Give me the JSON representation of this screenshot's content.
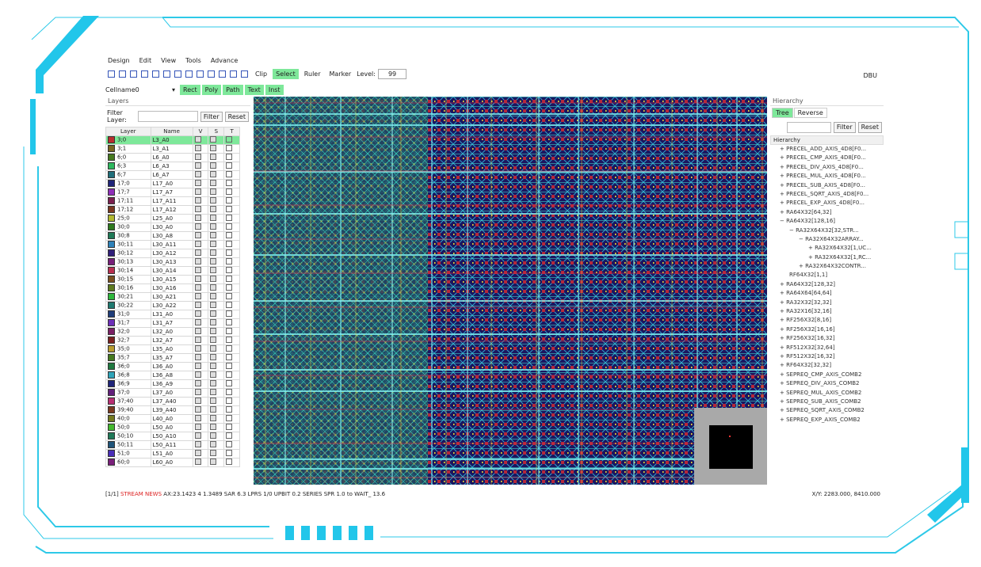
{
  "menu": [
    "Design",
    "Edit",
    "View",
    "Tools",
    "Advance"
  ],
  "toolbar": {
    "tools": [
      "Clip",
      "Select",
      "Ruler",
      "Marker"
    ],
    "level_label": "Level:",
    "level_value": "99",
    "right": "DBU"
  },
  "cell_bar": {
    "cell": "Cellname0",
    "draw_tools": [
      "Rect",
      "Poly",
      "Path",
      "Text",
      "Inst"
    ]
  },
  "layers_panel": {
    "title": "Layers",
    "filter_label": "Filter Layer:",
    "filter_button": "Filter",
    "reset_button": "Reset",
    "columns": [
      "Layer",
      "Name",
      "V",
      "S",
      "T"
    ],
    "rows": [
      [
        "3;0",
        "L3_A0"
      ],
      [
        "3;1",
        "L3_A1"
      ],
      [
        "6;0",
        "L6_A0"
      ],
      [
        "6;3",
        "L6_A3"
      ],
      [
        "6;7",
        "L6_A7"
      ],
      [
        "17;0",
        "L17_A0"
      ],
      [
        "17;7",
        "L17_A7"
      ],
      [
        "17;11",
        "L17_A11"
      ],
      [
        "17;12",
        "L17_A12"
      ],
      [
        "25;0",
        "L25_A0"
      ],
      [
        "30;0",
        "L30_A0"
      ],
      [
        "30;8",
        "L30_A8"
      ],
      [
        "30;11",
        "L30_A11"
      ],
      [
        "30;12",
        "L30_A12"
      ],
      [
        "30;13",
        "L30_A13"
      ],
      [
        "30;14",
        "L30_A14"
      ],
      [
        "30;15",
        "L30_A15"
      ],
      [
        "30;16",
        "L30_A16"
      ],
      [
        "30;21",
        "L30_A21"
      ],
      [
        "30;22",
        "L30_A22"
      ],
      [
        "31;0",
        "L31_A0"
      ],
      [
        "31;7",
        "L31_A7"
      ],
      [
        "32;0",
        "L32_A0"
      ],
      [
        "32;7",
        "L32_A7"
      ],
      [
        "35;0",
        "L35_A0"
      ],
      [
        "35;7",
        "L35_A7"
      ],
      [
        "36;0",
        "L36_A0"
      ],
      [
        "36;8",
        "L36_A8"
      ],
      [
        "36;9",
        "L36_A9"
      ],
      [
        "37;0",
        "L37_A0"
      ],
      [
        "37;40",
        "L37_A40"
      ],
      [
        "39;40",
        "L39_A40"
      ],
      [
        "40;0",
        "L40_A0"
      ],
      [
        "50;0",
        "L50_A0"
      ],
      [
        "50;10",
        "L50_A10"
      ],
      [
        "50;11",
        "L50_A11"
      ],
      [
        "51;0",
        "L51_A0"
      ],
      [
        "60;0",
        "L60_A0"
      ]
    ]
  },
  "hierarchy_panel": {
    "title": "Hierarchy",
    "tabs": [
      "Tree",
      "Reverse"
    ],
    "filter_button": "Filter",
    "reset_button": "Reset",
    "header": "Hierarchy",
    "items": [
      [
        "+ PRECEL_ADD_AXIS_4D8[F0...",
        1
      ],
      [
        "+ PRECEL_CMP_AXIS_4D8[F0...",
        1
      ],
      [
        "+ PRECEL_DIV_AXIS_4D8[F0...",
        1
      ],
      [
        "+ PRECEL_MUL_AXIS_4D8[F0...",
        1
      ],
      [
        "+ PRECEL_SUB_AXIS_4D8[F0...",
        1
      ],
      [
        "+ PRECEL_SQRT_AXIS_4D8[F0...",
        1
      ],
      [
        "+ PRECEL_EXP_AXIS_4D8[F0...",
        1
      ],
      [
        "+ RA64X32[64,32]",
        1
      ],
      [
        "− RA64X32[128,16]",
        1
      ],
      [
        "− RA32X64X32[32,STR...",
        2
      ],
      [
        "− RA32X64X32ARRAY...",
        3
      ],
      [
        "+ RA32X64X32[1,UC...",
        4
      ],
      [
        "+ RA32X64X32[1,RC...",
        4
      ],
      [
        "+ RA32X64X32CONTR...",
        3
      ],
      [
        "RF64X32[1,1]",
        2
      ],
      [
        "+ RA64X32[128,32]",
        1
      ],
      [
        "+ RA64X64[64,64]",
        1
      ],
      [
        "+ RA32X32[32,32]",
        1
      ],
      [
        "+ RA32X16[32,16]",
        1
      ],
      [
        "+ RF256X32[8,16]",
        1
      ],
      [
        "+ RF256X32[16,16]",
        1
      ],
      [
        "+ RF256X32[16,32]",
        1
      ],
      [
        "+ RF512X32[32,64]",
        1
      ],
      [
        "+ RF512X32[16,32]",
        1
      ],
      [
        "+ RF64X32[32,32]",
        1
      ],
      [
        "+ SEPREQ_CMP_AXIS_COMB2",
        1
      ],
      [
        "+ SEPREQ_DIV_AXIS_COMB2",
        1
      ],
      [
        "+ SEPREQ_MUL_AXIS_COMB2",
        1
      ],
      [
        "+ SEPREQ_SUB_AXIS_COMB2",
        1
      ],
      [
        "+ SEPREQ_SQRT_AXIS_COMB2",
        1
      ],
      [
        "+ SEPREQ_EXP_AXIS_COMB2",
        1
      ]
    ]
  },
  "status": {
    "left_prefix": "[1/1]",
    "left_red": "STREAM NEWS",
    "left_rest": "AX:23.1423 4 1.3489 SAR 6.3 LPRS 1/0 UPBIT 0.2 SERIES SPR 1.0 to WAIT_ 13.6",
    "right": "X/Y: 2283.000, 8410.000"
  }
}
